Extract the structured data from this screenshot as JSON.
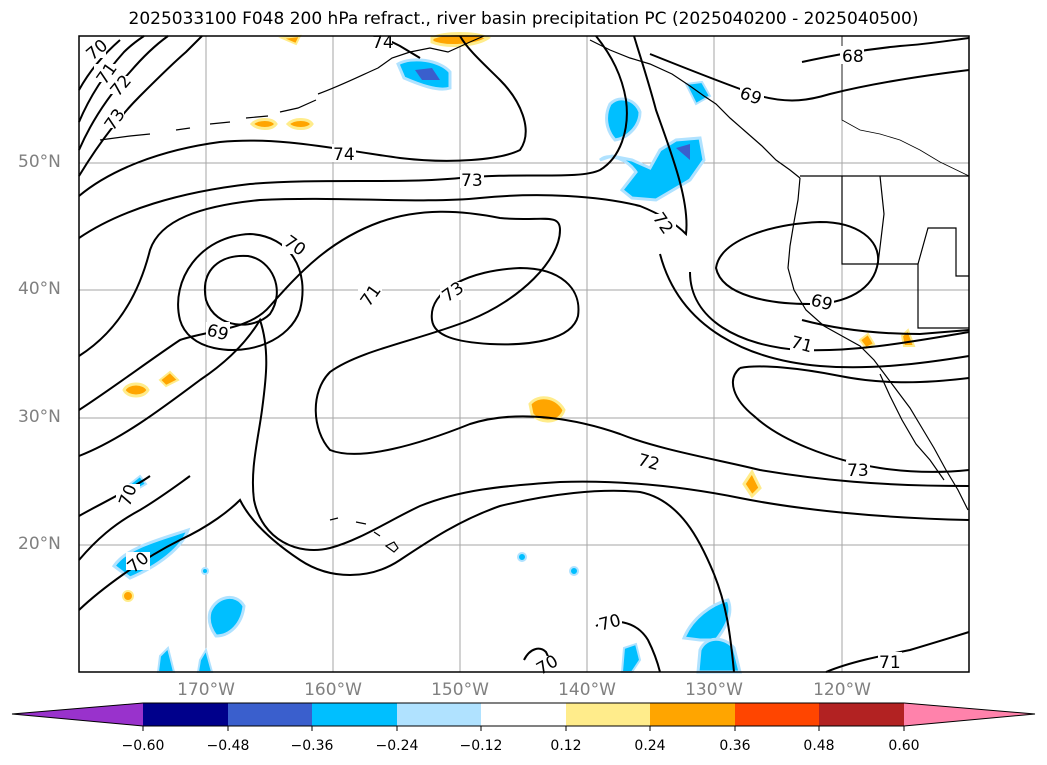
{
  "title": "2025033100 F048 200 hPa refract., river basin precipitation PC (2025040200 - 2025040500)",
  "map": {
    "projection": "PlateCarree",
    "extent": {
      "lon_min": -180,
      "lon_max": -110,
      "lat_min": 10,
      "lat_max": 60
    },
    "gridlines": true,
    "latitude_labels": [
      "20°N",
      "30°N",
      "40°N",
      "50°N"
    ],
    "longitude_labels": [
      "170°W",
      "160°W",
      "150°W",
      "140°W",
      "130°W",
      "120°W"
    ],
    "contour_labels": [
      "70",
      "71",
      "72",
      "73",
      "74",
      "74",
      "73",
      "72",
      "69",
      "68",
      "70",
      "71",
      "73",
      "69",
      "71",
      "72",
      "73",
      "69",
      "70",
      "70",
      "70",
      "71"
    ],
    "contour_color": "#000000",
    "coast_color": "#000000"
  },
  "colorbar": {
    "ticks": [
      "−0.60",
      "−0.48",
      "−0.36",
      "−0.24",
      "−0.12",
      "0.12",
      "0.24",
      "0.36",
      "0.48",
      "0.60"
    ],
    "colors": [
      "#9932cc",
      "#00008b",
      "#3a5fcd",
      "#00bfff",
      "#b0e2ff",
      "#ffffff",
      "#ffec8b",
      "#ffa500",
      "#ff4500",
      "#b22222",
      "#ff82ab"
    ],
    "extend": "both"
  }
}
